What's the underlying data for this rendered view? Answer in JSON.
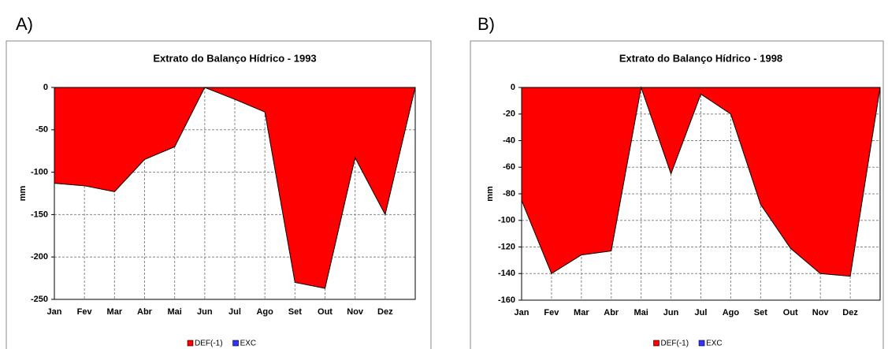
{
  "chart_data": [
    {
      "type": "area",
      "label": "A)",
      "title": "Extrato do Balanço Hídrico - 1993",
      "y_label": "mm",
      "categories": [
        "Jan",
        "Fev",
        "Mar",
        "Abr",
        "Mai",
        "Jun",
        "Jul",
        "Ago",
        "Set",
        "Out",
        "Nov",
        "Dez",
        null
      ],
      "series": [
        {
          "name": "DEF(-1)",
          "color": "#ff0000",
          "values": [
            -113,
            -116,
            -123,
            -85,
            -70,
            0,
            -14,
            -29,
            -230,
            -237,
            -83,
            -150,
            0
          ]
        },
        {
          "name": "EXC",
          "color": "#3333ff",
          "values": [
            0,
            0,
            0,
            0,
            0,
            0,
            0,
            0,
            0,
            0,
            0,
            0,
            0
          ]
        }
      ],
      "ylim": [
        -250,
        0
      ],
      "yticks": [
        0,
        -50,
        -100,
        -150,
        -200,
        -250
      ],
      "grid": true
    },
    {
      "type": "area",
      "label": "B)",
      "title": "Extrato do Balanço Hídrico - 1998",
      "y_label": "mm",
      "categories": [
        "Jan",
        "Fev",
        "Mar",
        "Abr",
        "Mai",
        "Jun",
        "Jul",
        "Ago",
        "Set",
        "Out",
        "Nov",
        "Dez",
        null
      ],
      "series": [
        {
          "name": "DEF(-1)",
          "color": "#ff0000",
          "values": [
            -85,
            -140,
            -126,
            -123,
            0,
            -65,
            -5,
            -20,
            -88,
            -121,
            -140,
            -142,
            0
          ]
        },
        {
          "name": "EXC",
          "color": "#3333ff",
          "values": [
            0,
            0,
            0,
            0,
            0,
            0,
            0,
            0,
            0,
            0,
            0,
            0,
            0
          ]
        }
      ],
      "ylim": [
        -160,
        0
      ],
      "yticks": [
        0,
        -20,
        -40,
        -60,
        -80,
        -100,
        -120,
        -140,
        -160
      ],
      "grid": true
    }
  ]
}
